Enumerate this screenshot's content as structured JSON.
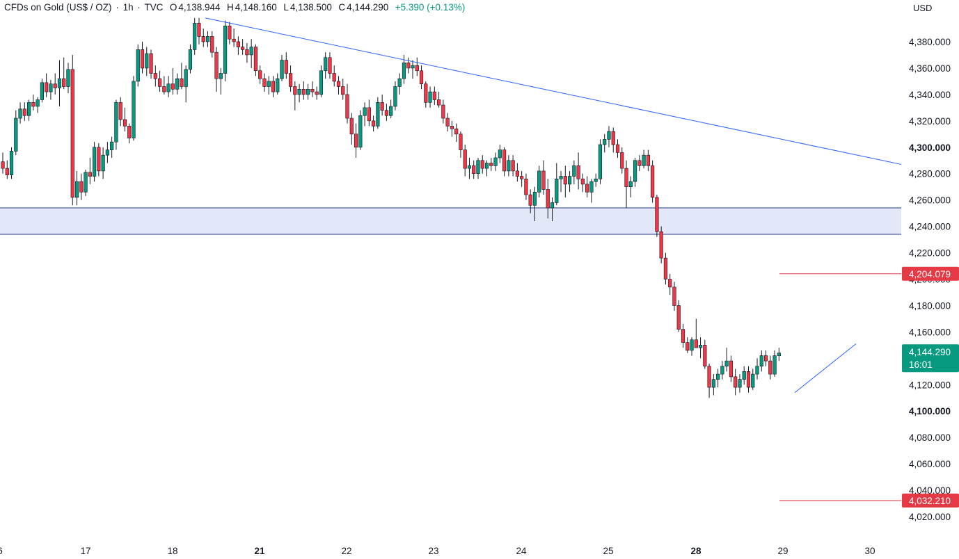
{
  "header": {
    "symbol": "CFDs on Gold (US$ / OZ)",
    "interval": "1h",
    "source": "TVC",
    "open_label": "O",
    "open": "4,138.944",
    "high_label": "H",
    "high": "4,148.160",
    "low_label": "L",
    "low": "4,138.500",
    "close_label": "C",
    "close": "4,144.290",
    "change": "+5.390 (+0.13%)"
  },
  "currency": "USD",
  "colors": {
    "up": "#089981",
    "down": "#f23645",
    "trend": "#2962ff",
    "zone_fill": "#e3e8f8",
    "zone_border": "#1e3a8a",
    "level_red": "#e53945",
    "price_tag": "#089981"
  },
  "chart_data": {
    "type": "candlestick",
    "y_axis": {
      "range": [
        4010,
        4400
      ],
      "ticks": [
        {
          "value": 4380,
          "label": "4,380.000"
        },
        {
          "value": 4360,
          "label": "4,360.000"
        },
        {
          "value": 4340,
          "label": "4,340.000"
        },
        {
          "value": 4320,
          "label": "4,320.000"
        },
        {
          "value": 4300,
          "label": "4,300.000",
          "bold": true
        },
        {
          "value": 4280,
          "label": "4,280.000"
        },
        {
          "value": 4260,
          "label": "4,260.000"
        },
        {
          "value": 4240,
          "label": "4,240.000"
        },
        {
          "value": 4220,
          "label": "4,220.000"
        },
        {
          "value": 4200,
          "label": "4,200.000"
        },
        {
          "value": 4180,
          "label": "4,180.000"
        },
        {
          "value": 4160,
          "label": "4,160.000"
        },
        {
          "value": 4140,
          "label": "4,140.000"
        },
        {
          "value": 4120,
          "label": "4,120.000"
        },
        {
          "value": 4100,
          "label": "4,100.000",
          "bold": true
        },
        {
          "value": 4080,
          "label": "4,080.000"
        },
        {
          "value": 4060,
          "label": "4,060.000"
        },
        {
          "value": 4040,
          "label": "4,040.000"
        },
        {
          "value": 4020,
          "label": "4,020.000"
        }
      ]
    },
    "x_axis": {
      "ticks": [
        {
          "label": "6",
          "pos": 0
        },
        {
          "label": "17",
          "pos": 1
        },
        {
          "label": "18",
          "pos": 2
        },
        {
          "label": "21",
          "pos": 3,
          "bold": true
        },
        {
          "label": "22",
          "pos": 4
        },
        {
          "label": "23",
          "pos": 5
        },
        {
          "label": "24",
          "pos": 6
        },
        {
          "label": "25",
          "pos": 7
        },
        {
          "label": "28",
          "pos": 8,
          "bold": true
        },
        {
          "label": "29",
          "pos": 9
        },
        {
          "label": "30",
          "pos": 10
        }
      ]
    },
    "candles": [
      [
        4289,
        4296,
        4280,
        4284
      ],
      [
        4284,
        4290,
        4276,
        4279
      ],
      [
        4279,
        4300,
        4276,
        4297
      ],
      [
        4297,
        4328,
        4294,
        4322
      ],
      [
        4322,
        4334,
        4318,
        4329
      ],
      [
        4329,
        4334,
        4320,
        4324
      ],
      [
        4324,
        4336,
        4320,
        4334
      ],
      [
        4334,
        4340,
        4328,
        4331
      ],
      [
        4331,
        4338,
        4326,
        4336
      ],
      [
        4336,
        4352,
        4334,
        4349
      ],
      [
        4349,
        4356,
        4338,
        4342
      ],
      [
        4342,
        4351,
        4336,
        4348
      ],
      [
        4348,
        4356,
        4340,
        4345
      ],
      [
        4345,
        4366,
        4331,
        4352
      ],
      [
        4352,
        4368,
        4344,
        4346
      ],
      [
        4346,
        4364,
        4341,
        4359
      ],
      [
        4359,
        4370,
        4256,
        4262
      ],
      [
        4262,
        4282,
        4256,
        4274
      ],
      [
        4274,
        4280,
        4260,
        4266
      ],
      [
        4266,
        4283,
        4263,
        4281
      ],
      [
        4281,
        4292,
        4272,
        4278
      ],
      [
        4278,
        4304,
        4274,
        4300
      ],
      [
        4300,
        4303,
        4278,
        4282
      ],
      [
        4282,
        4300,
        4276,
        4294
      ],
      [
        4294,
        4304,
        4288,
        4298
      ],
      [
        4298,
        4308,
        4292,
        4304
      ],
      [
        4304,
        4336,
        4298,
        4334
      ],
      [
        4334,
        4338,
        4316,
        4321
      ],
      [
        4321,
        4330,
        4312,
        4316
      ],
      [
        4316,
        4318,
        4303,
        4307
      ],
      [
        4307,
        4354,
        4305,
        4350
      ],
      [
        4350,
        4378,
        4346,
        4374
      ],
      [
        4374,
        4380,
        4356,
        4360
      ],
      [
        4360,
        4376,
        4354,
        4371
      ],
      [
        4371,
        4374,
        4352,
        4356
      ],
      [
        4356,
        4362,
        4346,
        4352
      ],
      [
        4352,
        4358,
        4342,
        4346
      ],
      [
        4346,
        4354,
        4340,
        4342
      ],
      [
        4342,
        4354,
        4338,
        4348
      ],
      [
        4348,
        4360,
        4340,
        4344
      ],
      [
        4344,
        4356,
        4340,
        4352
      ],
      [
        4352,
        4364,
        4344,
        4346
      ],
      [
        4346,
        4362,
        4334,
        4359
      ],
      [
        4359,
        4378,
        4356,
        4374
      ],
      [
        4374,
        4398,
        4370,
        4394
      ],
      [
        4394,
        4398,
        4378,
        4384
      ],
      [
        4384,
        4390,
        4376,
        4380
      ],
      [
        4380,
        4388,
        4376,
        4384
      ],
      [
        4384,
        4388,
        4368,
        4372
      ],
      [
        4372,
        4376,
        4342,
        4352
      ],
      [
        4352,
        4360,
        4340,
        4356
      ],
      [
        4356,
        4396,
        4350,
        4392
      ],
      [
        4392,
        4395,
        4378,
        4382
      ],
      [
        4382,
        4390,
        4376,
        4380
      ],
      [
        4380,
        4384,
        4370,
        4376
      ],
      [
        4376,
        4382,
        4370,
        4374
      ],
      [
        4374,
        4379,
        4364,
        4370
      ],
      [
        4370,
        4382,
        4360,
        4376
      ],
      [
        4376,
        4378,
        4354,
        4358
      ],
      [
        4358,
        4362,
        4348,
        4352
      ],
      [
        4352,
        4356,
        4342,
        4346
      ],
      [
        4346,
        4354,
        4340,
        4350
      ],
      [
        4350,
        4354,
        4338,
        4342
      ],
      [
        4342,
        4356,
        4340,
        4352
      ],
      [
        4352,
        4370,
        4350,
        4366
      ],
      [
        4366,
        4372,
        4352,
        4356
      ],
      [
        4356,
        4362,
        4342,
        4346
      ],
      [
        4346,
        4350,
        4328,
        4340
      ],
      [
        4340,
        4348,
        4334,
        4344
      ],
      [
        4344,
        4350,
        4336,
        4340
      ],
      [
        4340,
        4348,
        4336,
        4344
      ],
      [
        4344,
        4350,
        4338,
        4342
      ],
      [
        4342,
        4346,
        4336,
        4340
      ],
      [
        4340,
        4362,
        4338,
        4358
      ],
      [
        4358,
        4372,
        4352,
        4368
      ],
      [
        4368,
        4372,
        4352,
        4356
      ],
      [
        4356,
        4362,
        4346,
        4350
      ],
      [
        4350,
        4354,
        4340,
        4346
      ],
      [
        4346,
        4352,
        4336,
        4340
      ],
      [
        4340,
        4348,
        4318,
        4322
      ],
      [
        4322,
        4326,
        4302,
        4310
      ],
      [
        4310,
        4318,
        4292,
        4300
      ],
      [
        4300,
        4328,
        4298,
        4324
      ],
      [
        4324,
        4334,
        4316,
        4330
      ],
      [
        4330,
        4336,
        4316,
        4320
      ],
      [
        4320,
        4324,
        4312,
        4316
      ],
      [
        4316,
        4338,
        4314,
        4334
      ],
      [
        4334,
        4340,
        4324,
        4328
      ],
      [
        4328,
        4333,
        4320,
        4324
      ],
      [
        4324,
        4336,
        4322,
        4331
      ],
      [
        4331,
        4350,
        4328,
        4346
      ],
      [
        4346,
        4356,
        4340,
        4352
      ],
      [
        4352,
        4370,
        4348,
        4364
      ],
      [
        4364,
        4368,
        4356,
        4360
      ],
      [
        4360,
        4366,
        4352,
        4362
      ],
      [
        4362,
        4368,
        4354,
        4358
      ],
      [
        4358,
        4362,
        4344,
        4348
      ],
      [
        4348,
        4350,
        4330,
        4334
      ],
      [
        4334,
        4346,
        4330,
        4342
      ],
      [
        4342,
        4346,
        4332,
        4336
      ],
      [
        4336,
        4342,
        4330,
        4332
      ],
      [
        4332,
        4336,
        4318,
        4322
      ],
      [
        4322,
        4326,
        4312,
        4316
      ],
      [
        4316,
        4320,
        4308,
        4314
      ],
      [
        4314,
        4318,
        4304,
        4310
      ],
      [
        4310,
        4312,
        4292,
        4298
      ],
      [
        4298,
        4302,
        4278,
        4284
      ],
      [
        4284,
        4292,
        4276,
        4286
      ],
      [
        4286,
        4290,
        4276,
        4280
      ],
      [
        4280,
        4292,
        4276,
        4290
      ],
      [
        4290,
        4294,
        4280,
        4284
      ],
      [
        4284,
        4290,
        4278,
        4288
      ],
      [
        4288,
        4292,
        4282,
        4286
      ],
      [
        4286,
        4296,
        4282,
        4292
      ],
      [
        4292,
        4302,
        4288,
        4298
      ],
      [
        4298,
        4300,
        4278,
        4282
      ],
      [
        4282,
        4294,
        4278,
        4290
      ],
      [
        4290,
        4294,
        4278,
        4282
      ],
      [
        4282,
        4288,
        4274,
        4278
      ],
      [
        4278,
        4282,
        4270,
        4276
      ],
      [
        4276,
        4280,
        4260,
        4264
      ],
      [
        4264,
        4268,
        4250,
        4256
      ],
      [
        4256,
        4270,
        4244,
        4266
      ],
      [
        4266,
        4286,
        4262,
        4282
      ],
      [
        4282,
        4290,
        4264,
        4268
      ],
      [
        4268,
        4276,
        4246,
        4254
      ],
      [
        4254,
        4262,
        4244,
        4258
      ],
      [
        4258,
        4288,
        4256,
        4276
      ],
      [
        4276,
        4282,
        4266,
        4278
      ],
      [
        4278,
        4286,
        4262,
        4272
      ],
      [
        4272,
        4282,
        4266,
        4278
      ],
      [
        4278,
        4290,
        4272,
        4286
      ],
      [
        4286,
        4296,
        4268,
        4276
      ],
      [
        4276,
        4280,
        4266,
        4272
      ],
      [
        4272,
        4278,
        4262,
        4266
      ],
      [
        4266,
        4276,
        4258,
        4274
      ],
      [
        4274,
        4280,
        4270,
        4276
      ],
      [
        4276,
        4306,
        4272,
        4302
      ],
      [
        4302,
        4310,
        4296,
        4306
      ],
      [
        4306,
        4316,
        4300,
        4312
      ],
      [
        4312,
        4315,
        4296,
        4302
      ],
      [
        4302,
        4306,
        4292,
        4296
      ],
      [
        4296,
        4300,
        4280,
        4284
      ],
      [
        4284,
        4290,
        4254,
        4270
      ],
      [
        4270,
        4278,
        4262,
        4274
      ],
      [
        4274,
        4292,
        4270,
        4290
      ],
      [
        4290,
        4294,
        4282,
        4286
      ],
      [
        4286,
        4298,
        4284,
        4294
      ],
      [
        4294,
        4298,
        4282,
        4286
      ],
      [
        4286,
        4290,
        4258,
        4262
      ],
      [
        4262,
        4264,
        4232,
        4236
      ],
      [
        4236,
        4240,
        4212,
        4216
      ],
      [
        4216,
        4220,
        4196,
        4200
      ],
      [
        4200,
        4204,
        4188,
        4194
      ],
      [
        4194,
        4198,
        4176,
        4180
      ],
      [
        4180,
        4184,
        4160,
        4162
      ],
      [
        4162,
        4166,
        4148,
        4152
      ],
      [
        4152,
        4156,
        4144,
        4146
      ],
      [
        4146,
        4156,
        4142,
        4154
      ],
      [
        4154,
        4170,
        4150,
        4148
      ],
      [
        4148,
        4156,
        4140,
        4150
      ],
      [
        4150,
        4154,
        4132,
        4134
      ],
      [
        4134,
        4136,
        4110,
        4118
      ],
      [
        4118,
        4128,
        4112,
        4124
      ],
      [
        4124,
        4132,
        4118,
        4128
      ],
      [
        4128,
        4138,
        4124,
        4134
      ],
      [
        4134,
        4148,
        4130,
        4138
      ],
      [
        4138,
        4142,
        4122,
        4126
      ],
      [
        4126,
        4132,
        4112,
        4118
      ],
      [
        4118,
        4128,
        4114,
        4124
      ],
      [
        4124,
        4134,
        4120,
        4130
      ],
      [
        4130,
        4134,
        4114,
        4118
      ],
      [
        4118,
        4132,
        4116,
        4128
      ],
      [
        4128,
        4140,
        4124,
        4134
      ],
      [
        4134,
        4146,
        4130,
        4142
      ],
      [
        4142,
        4146,
        4134,
        4138
      ],
      [
        4138,
        4142,
        4124,
        4128
      ],
      [
        4128,
        4146,
        4126,
        4142
      ],
      [
        4142,
        4148,
        4138,
        4144
      ]
    ],
    "zone": {
      "top": 4254,
      "bottom": 4234
    },
    "price_levels": [
      {
        "value": 4204.079,
        "label": "4,204.079"
      },
      {
        "value": 4032.21,
        "label": "4,032.210"
      }
    ],
    "current_price": {
      "value": 4144.29,
      "label": "4,144.290",
      "countdown": "16:01"
    }
  }
}
